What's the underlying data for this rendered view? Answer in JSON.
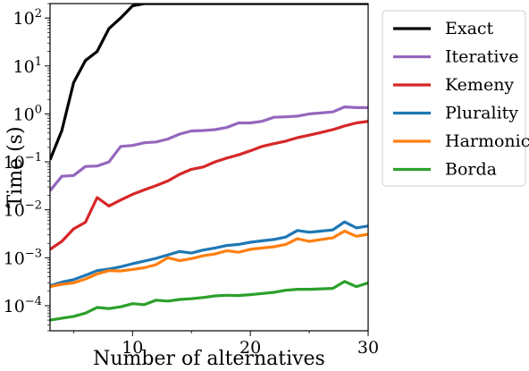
{
  "chart_data": {
    "type": "line",
    "title": "",
    "xlabel": "Number of alternatives",
    "ylabel": "Time (s)",
    "xlim": [
      3,
      30
    ],
    "ylim": [
      3e-05,
      200
    ],
    "yscale": "log",
    "grid": false,
    "legend_position": "outside-right",
    "x": [
      3,
      4,
      5,
      6,
      7,
      8,
      9,
      10,
      11,
      12,
      13,
      14,
      15,
      16,
      17,
      18,
      19,
      20,
      21,
      22,
      23,
      24,
      25,
      26,
      27,
      28,
      29,
      30
    ],
    "x_ticks": [
      10,
      20,
      30
    ],
    "y_ticks": [
      {
        "value": 0.0001,
        "label_base": "10",
        "label_exp": "−4"
      },
      {
        "value": 0.001,
        "label_base": "10",
        "label_exp": "−3"
      },
      {
        "value": 0.01,
        "label_base": "10",
        "label_exp": "−2"
      },
      {
        "value": 0.1,
        "label_base": "10",
        "label_exp": "−1"
      },
      {
        "value": 1,
        "label_base": "10",
        "label_exp": "0"
      },
      {
        "value": 10,
        "label_base": "10",
        "label_exp": "1"
      },
      {
        "value": 100,
        "label_base": "10",
        "label_exp": "2"
      }
    ],
    "series": [
      {
        "name": "Exact",
        "color": "#000000",
        "values": [
          0.11,
          0.45,
          4.5,
          13,
          20,
          60,
          100,
          180,
          200,
          200,
          200,
          200,
          200,
          200,
          200,
          200,
          200,
          200,
          200,
          200,
          200,
          200,
          200,
          200,
          200,
          200,
          200,
          200
        ]
      },
      {
        "name": "Iterative",
        "color": "#9467bd",
        "values": [
          0.025,
          0.05,
          0.052,
          0.08,
          0.082,
          0.1,
          0.21,
          0.22,
          0.25,
          0.26,
          0.3,
          0.38,
          0.44,
          0.45,
          0.47,
          0.52,
          0.65,
          0.65,
          0.7,
          0.85,
          0.87,
          0.9,
          1.0,
          1.05,
          1.1,
          1.4,
          1.35,
          1.35
        ]
      },
      {
        "name": "Kemeny",
        "color": "#d62728",
        "values": [
          0.0015,
          0.0022,
          0.004,
          0.0055,
          0.018,
          0.012,
          0.016,
          0.021,
          0.026,
          0.032,
          0.04,
          0.055,
          0.07,
          0.078,
          0.1,
          0.12,
          0.14,
          0.17,
          0.21,
          0.24,
          0.27,
          0.32,
          0.36,
          0.41,
          0.47,
          0.56,
          0.65,
          0.7
        ]
      },
      {
        "name": "Plurality",
        "color": "#1f77b4",
        "values": [
          0.00026,
          0.00031,
          0.00035,
          0.00043,
          0.00054,
          0.00058,
          0.00065,
          0.00075,
          0.00085,
          0.00097,
          0.00115,
          0.00135,
          0.00125,
          0.00145,
          0.0016,
          0.0018,
          0.0019,
          0.0021,
          0.00225,
          0.0024,
          0.0027,
          0.0037,
          0.0034,
          0.0036,
          0.0038,
          0.0056,
          0.0042,
          0.0046
        ]
      },
      {
        "name": "Harmonic",
        "color": "#ff7f0e",
        "values": [
          0.00025,
          0.00028,
          0.0003,
          0.00036,
          0.00046,
          0.00054,
          0.00053,
          0.00057,
          0.00062,
          0.00072,
          0.001,
          0.00087,
          0.00096,
          0.0011,
          0.0012,
          0.0014,
          0.0013,
          0.0015,
          0.0016,
          0.0017,
          0.0019,
          0.0025,
          0.0022,
          0.0024,
          0.0026,
          0.0036,
          0.0028,
          0.0031
        ]
      },
      {
        "name": "Borda",
        "color": "#2ca02c",
        "values": [
          5e-05,
          5.5e-05,
          6e-05,
          7e-05,
          9.2e-05,
          8.7e-05,
          9.5e-05,
          0.00011,
          0.000105,
          0.00013,
          0.000125,
          0.000135,
          0.00014,
          0.000148,
          0.00016,
          0.000165,
          0.000163,
          0.00017,
          0.00018,
          0.00019,
          0.00021,
          0.00022,
          0.00022,
          0.000225,
          0.00023,
          0.00032,
          0.00025,
          0.0003
        ]
      }
    ]
  }
}
